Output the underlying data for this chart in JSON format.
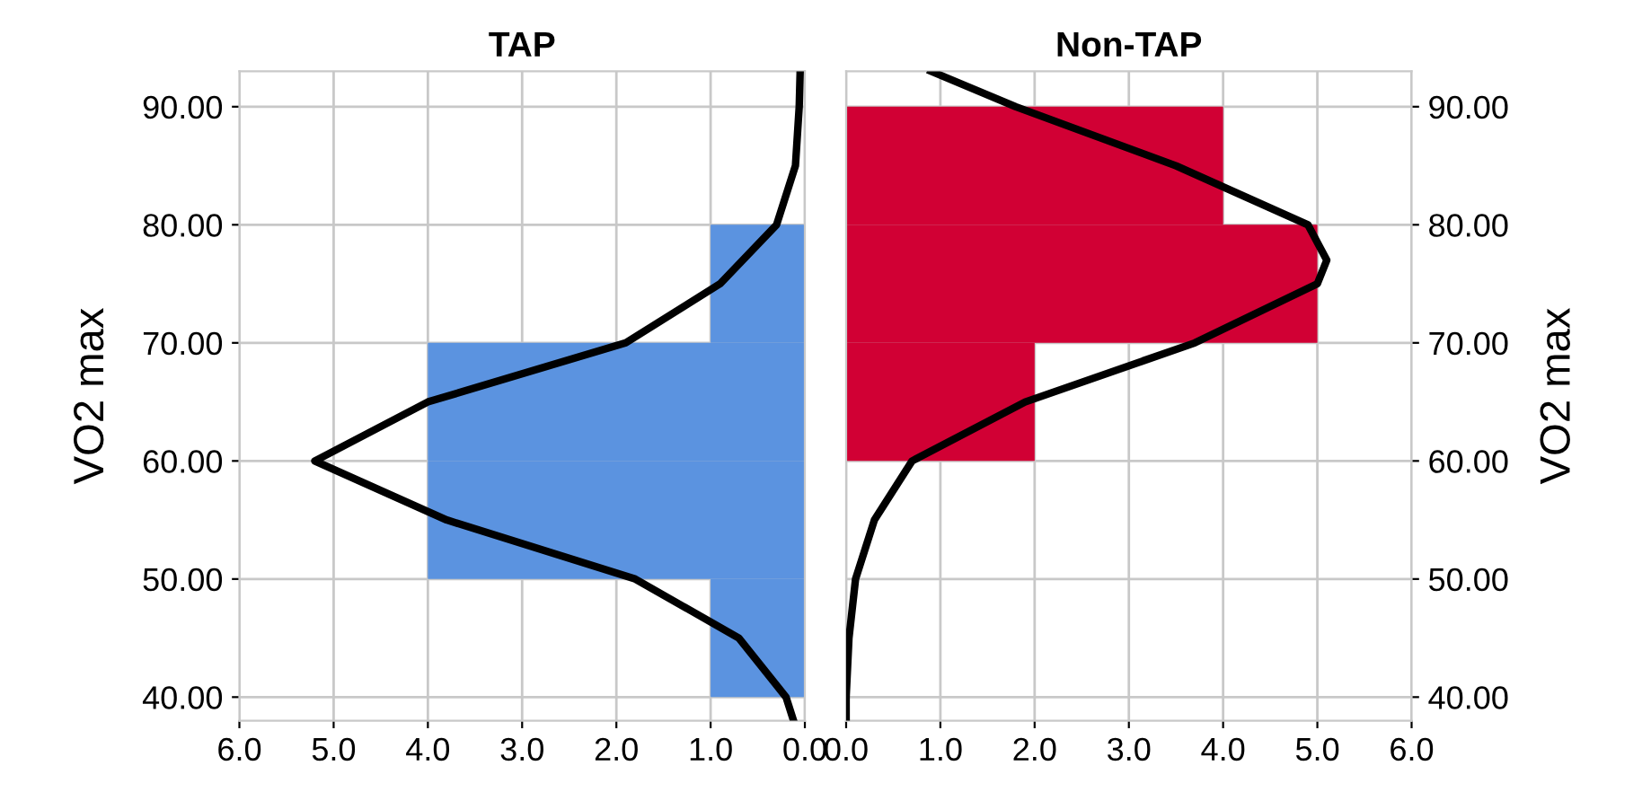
{
  "chart_data": [
    {
      "type": "histogram",
      "title": "TAP",
      "ylabel": "VO2 max",
      "orientation": "horizontal",
      "bins": [
        40,
        50,
        60,
        70,
        80
      ],
      "values": [
        1,
        4,
        4,
        1
      ],
      "color": "#5b93e0",
      "series": [
        {
          "type": "line",
          "color": "#000000",
          "x": [
            37.5,
            40,
            45,
            50,
            55,
            60,
            65,
            70,
            75,
            80,
            85,
            90,
            93
          ],
          "values": [
            0.1,
            0.2,
            0.7,
            1.8,
            3.8,
            5.2,
            4.0,
            1.9,
            0.9,
            0.3,
            0.1,
            0.06,
            0.05
          ]
        }
      ],
      "xlim": [
        6,
        0
      ],
      "xticks": [
        {
          "value": 6,
          "label": "6.0"
        },
        {
          "value": 5,
          "label": "5.0"
        },
        {
          "value": 4,
          "label": "4.0"
        },
        {
          "value": 3,
          "label": "3.0"
        },
        {
          "value": 2,
          "label": "2.0"
        },
        {
          "value": 1,
          "label": "1.0"
        },
        {
          "value": 0,
          "label": "0.0"
        }
      ],
      "ylim": [
        38,
        93
      ],
      "yticks": [
        {
          "value": 40,
          "label": "40.00"
        },
        {
          "value": 50,
          "label": "50.00"
        },
        {
          "value": 60,
          "label": "60.00"
        },
        {
          "value": 70,
          "label": "70.00"
        },
        {
          "value": 80,
          "label": "80.00"
        },
        {
          "value": 90,
          "label": "90.00"
        }
      ],
      "grid": true
    },
    {
      "type": "histogram",
      "title": "Non-TAP",
      "ylabel": "VO2 max",
      "orientation": "horizontal",
      "bins": [
        60,
        70,
        80,
        90
      ],
      "values": [
        2,
        5,
        4
      ],
      "color": "#d10034",
      "series": [
        {
          "type": "line",
          "color": "#000000",
          "x": [
            37.5,
            40,
            45,
            50,
            55,
            60,
            65,
            70,
            75,
            77,
            80,
            85,
            90,
            93
          ],
          "values": [
            0.0,
            0.0,
            0.03,
            0.1,
            0.3,
            0.7,
            1.9,
            3.7,
            5.0,
            5.1,
            4.9,
            3.5,
            1.8,
            0.9
          ]
        }
      ],
      "xlim": [
        0,
        6
      ],
      "xticks": [
        {
          "value": 0,
          "label": "0.0"
        },
        {
          "value": 1,
          "label": "1.0"
        },
        {
          "value": 2,
          "label": "2.0"
        },
        {
          "value": 3,
          "label": "3.0"
        },
        {
          "value": 4,
          "label": "4.0"
        },
        {
          "value": 5,
          "label": "5.0"
        },
        {
          "value": 6,
          "label": "6.0"
        }
      ],
      "ylim": [
        38,
        93
      ],
      "yticks": [
        {
          "value": 40,
          "label": "40.00"
        },
        {
          "value": 50,
          "label": "50.00"
        },
        {
          "value": 60,
          "label": "60.00"
        },
        {
          "value": 70,
          "label": "70.00"
        },
        {
          "value": 80,
          "label": "80.00"
        },
        {
          "value": 90,
          "label": "90.00"
        }
      ],
      "grid": true
    }
  ]
}
